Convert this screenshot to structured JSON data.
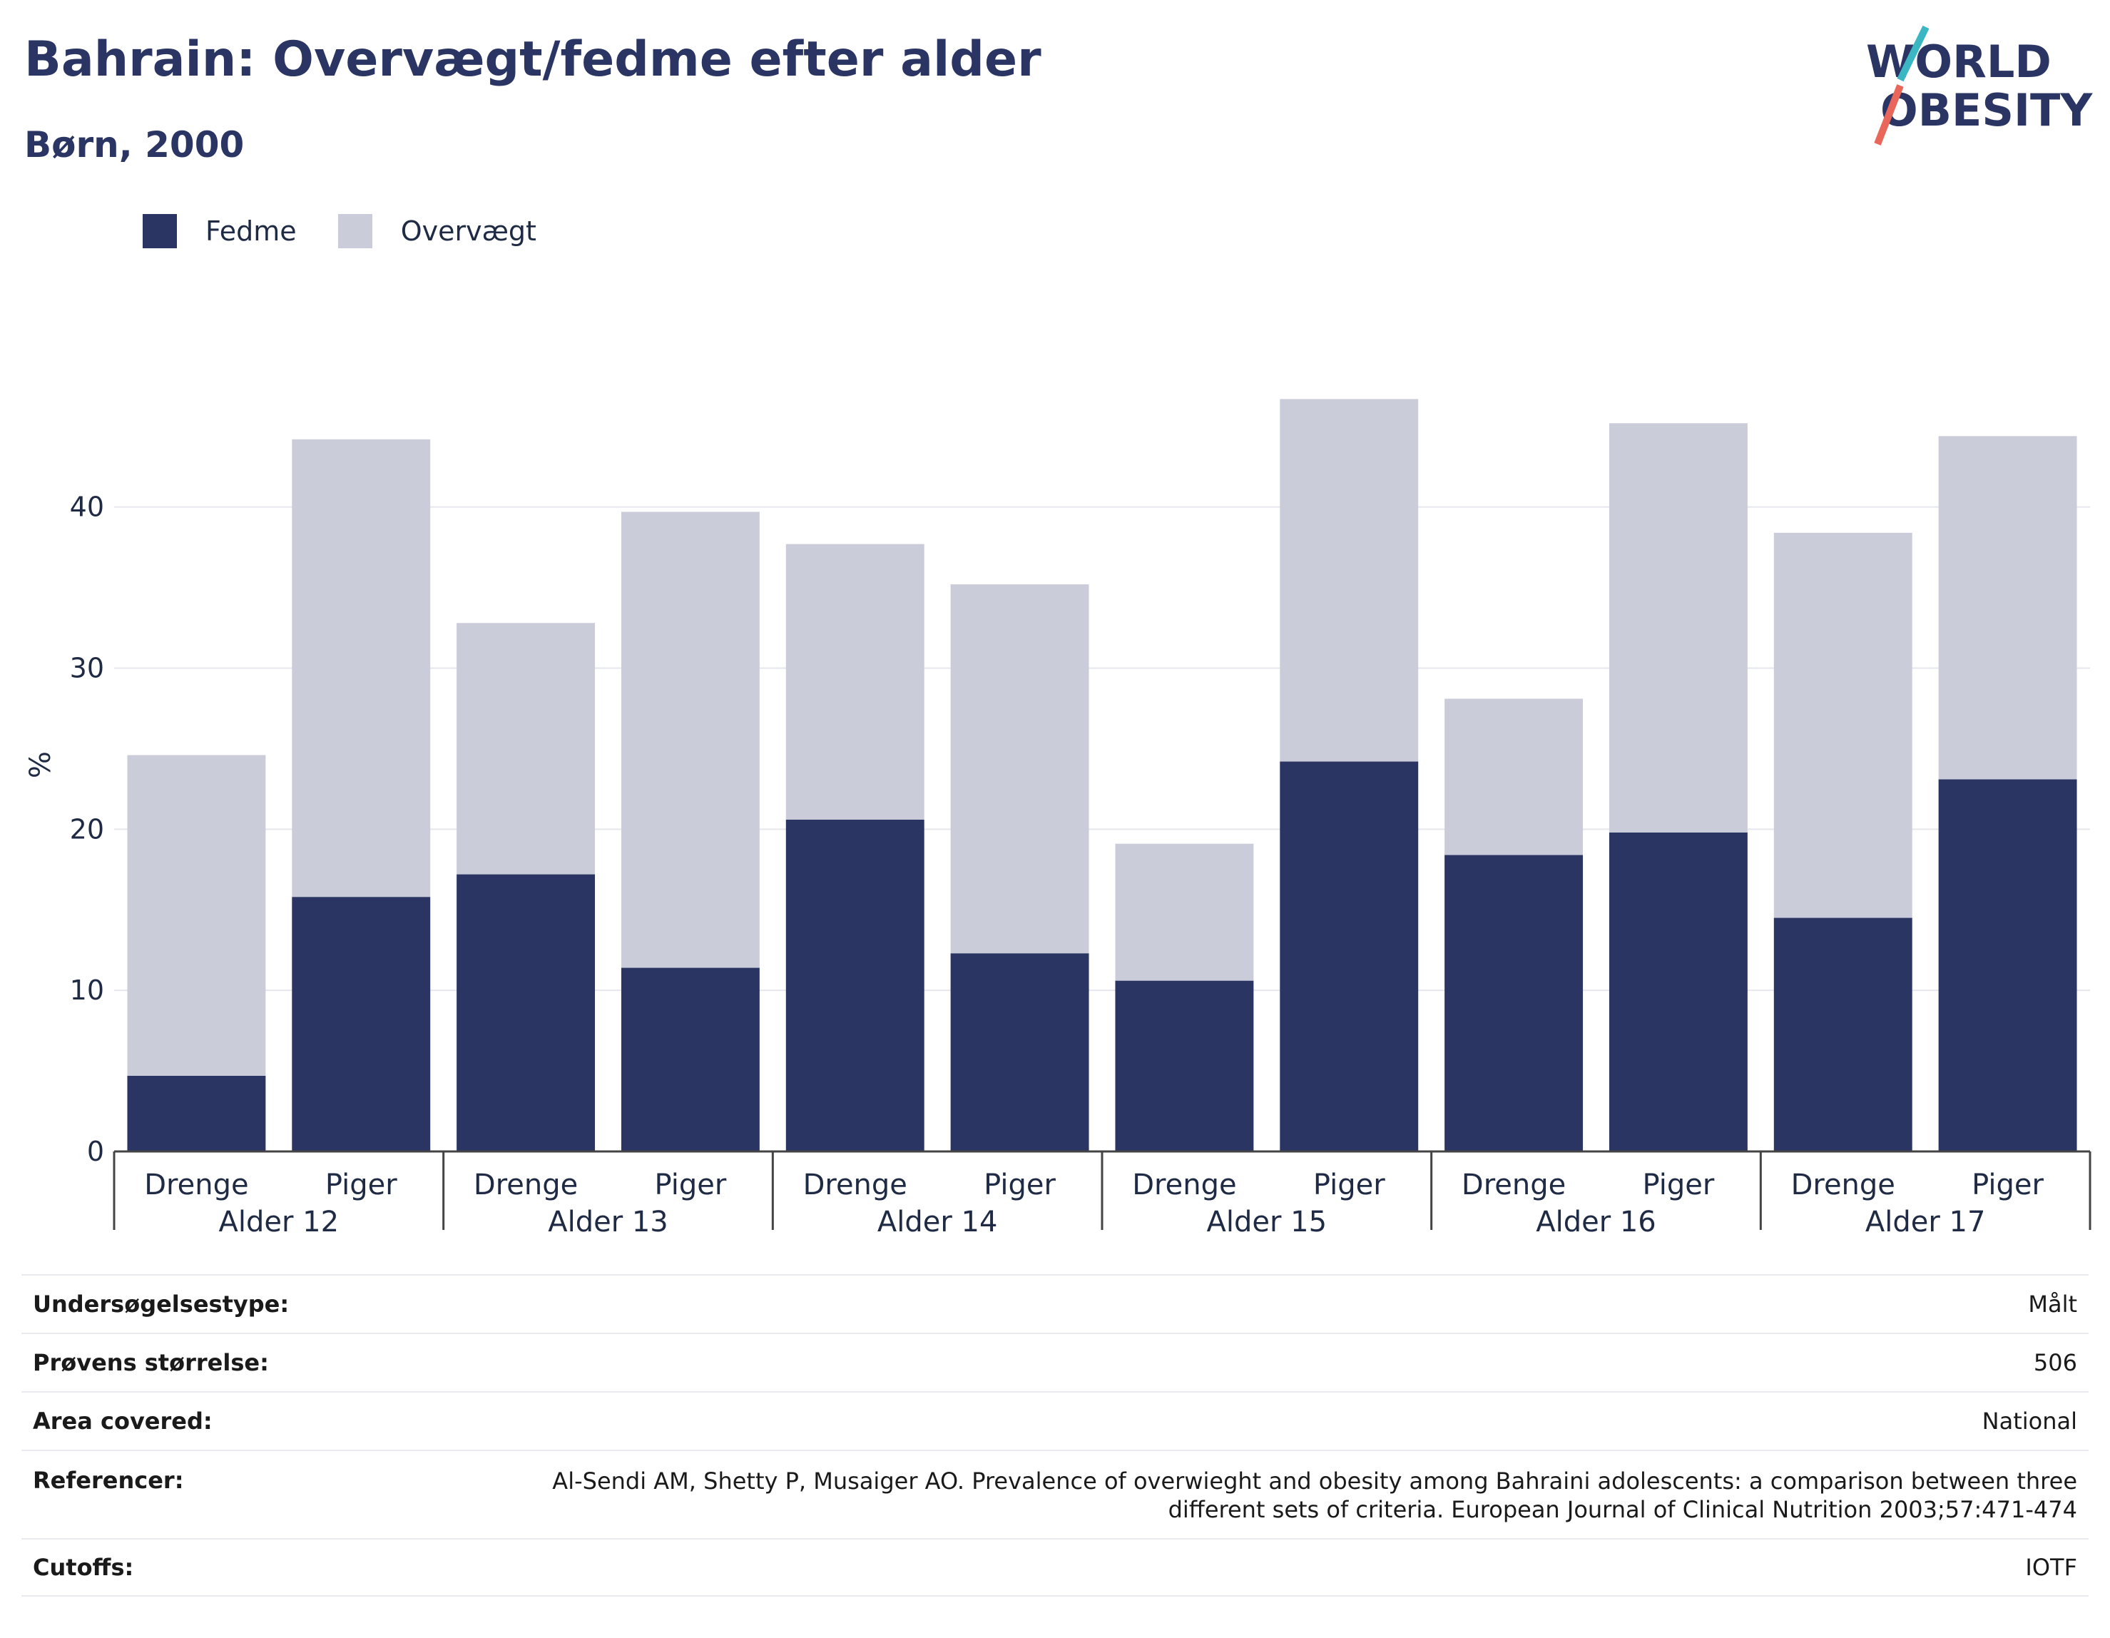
{
  "header": {
    "title": "Bahrain: Overvægt/fedme efter alder",
    "subtitle": "Børn, 2000"
  },
  "logo": {
    "line1": "WORLD",
    "line2": "OBESITY",
    "colors": {
      "text": "#2a3563",
      "accent_teal": "#3bb7c4",
      "accent_red": "#e8665a"
    }
  },
  "legend": [
    {
      "label": "Fedme",
      "color": "#2a3563"
    },
    {
      "label": "Overvægt",
      "color": "#cbccd9"
    }
  ],
  "chart_data": {
    "type": "bar",
    "stacked": true,
    "ylabel": "%",
    "ylim": [
      0,
      48
    ],
    "yticks": [
      0,
      10,
      20,
      30,
      40
    ],
    "grid": true,
    "legend_position": "top-left",
    "groups": [
      "Alder 12",
      "Alder 13",
      "Alder 14",
      "Alder 15",
      "Alder 16",
      "Alder 17"
    ],
    "subcategories": [
      "Drenge",
      "Piger"
    ],
    "series": [
      {
        "name": "Fedme",
        "color": "#2a3563",
        "values": [
          4.7,
          15.8,
          17.2,
          11.4,
          20.6,
          12.3,
          10.6,
          24.2,
          18.4,
          19.8,
          14.5,
          23.1
        ]
      },
      {
        "name": "Overvægt",
        "color": "#cbccd9",
        "values": [
          19.9,
          28.4,
          15.6,
          28.3,
          17.1,
          22.9,
          8.5,
          22.5,
          9.7,
          25.4,
          23.9,
          21.3
        ]
      }
    ]
  },
  "info_table": [
    {
      "label": "Undersøgelsestype:",
      "value": "Målt"
    },
    {
      "label": "Prøvens størrelse:",
      "value": "506"
    },
    {
      "label": "Area covered:",
      "value": "National"
    },
    {
      "label": "Referencer:",
      "value": "Al-Sendi AM, Shetty P, Musaiger AO. Prevalence of overwieght and obesity among Bahraini adolescents: a comparison between three different sets of criteria. European Journal of Clinical Nutrition 2003;57:471-474"
    },
    {
      "label": "Cutoffs:",
      "value": "IOTF"
    }
  ]
}
